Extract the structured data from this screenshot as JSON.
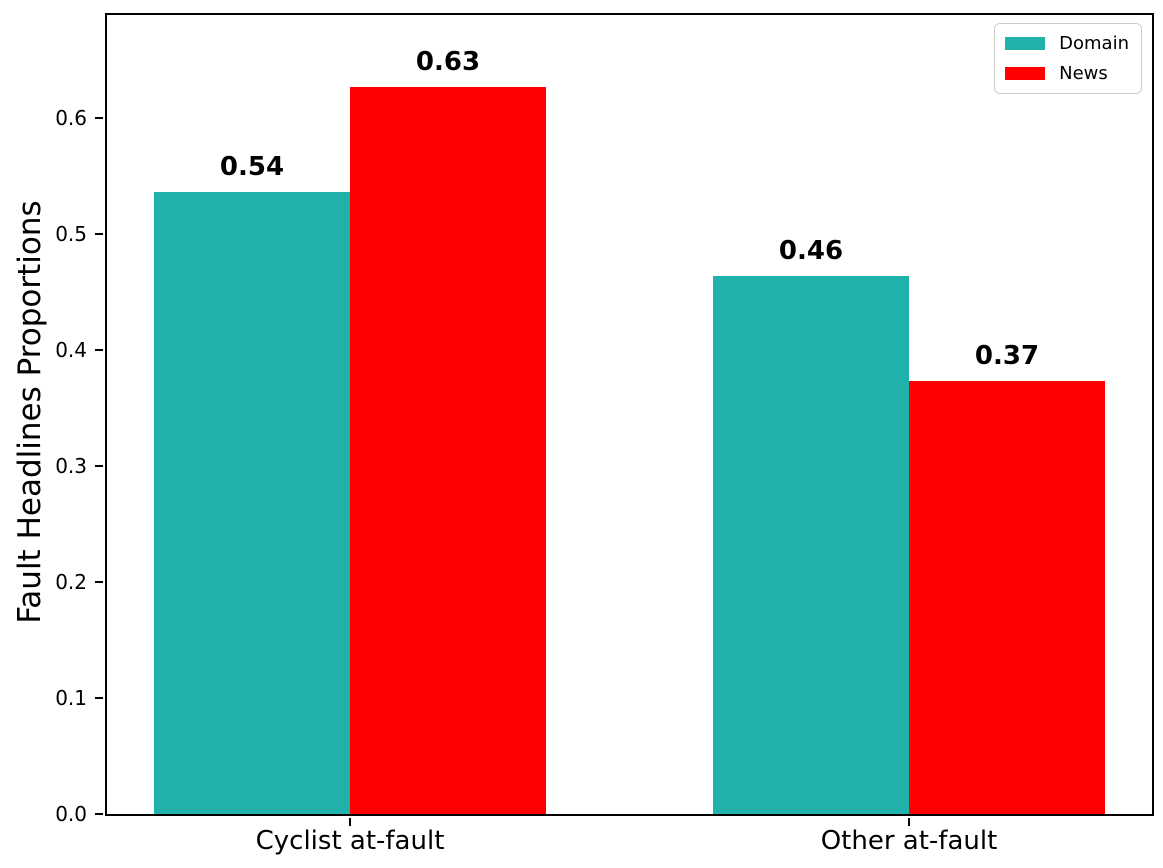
{
  "chart_data": {
    "type": "bar",
    "categories": [
      "Cyclist at-fault",
      "Other at-fault"
    ],
    "series": [
      {
        "name": "Domain",
        "color": "#20B2AA",
        "values": [
          0.536,
          0.464
        ],
        "labels": [
          "0.54",
          "0.46"
        ]
      },
      {
        "name": "News",
        "color": "#FF0000",
        "values": [
          0.627,
          0.373
        ],
        "labels": [
          "0.63",
          "0.37"
        ]
      }
    ],
    "title": "",
    "xlabel": "",
    "ylabel": "Fault Headlines Proportions",
    "yticks": [
      0.0,
      0.1,
      0.2,
      0.3,
      0.4,
      0.5,
      0.6
    ],
    "ylim": [
      0,
      0.689
    ],
    "grid": false,
    "legend_position": "upper right"
  }
}
